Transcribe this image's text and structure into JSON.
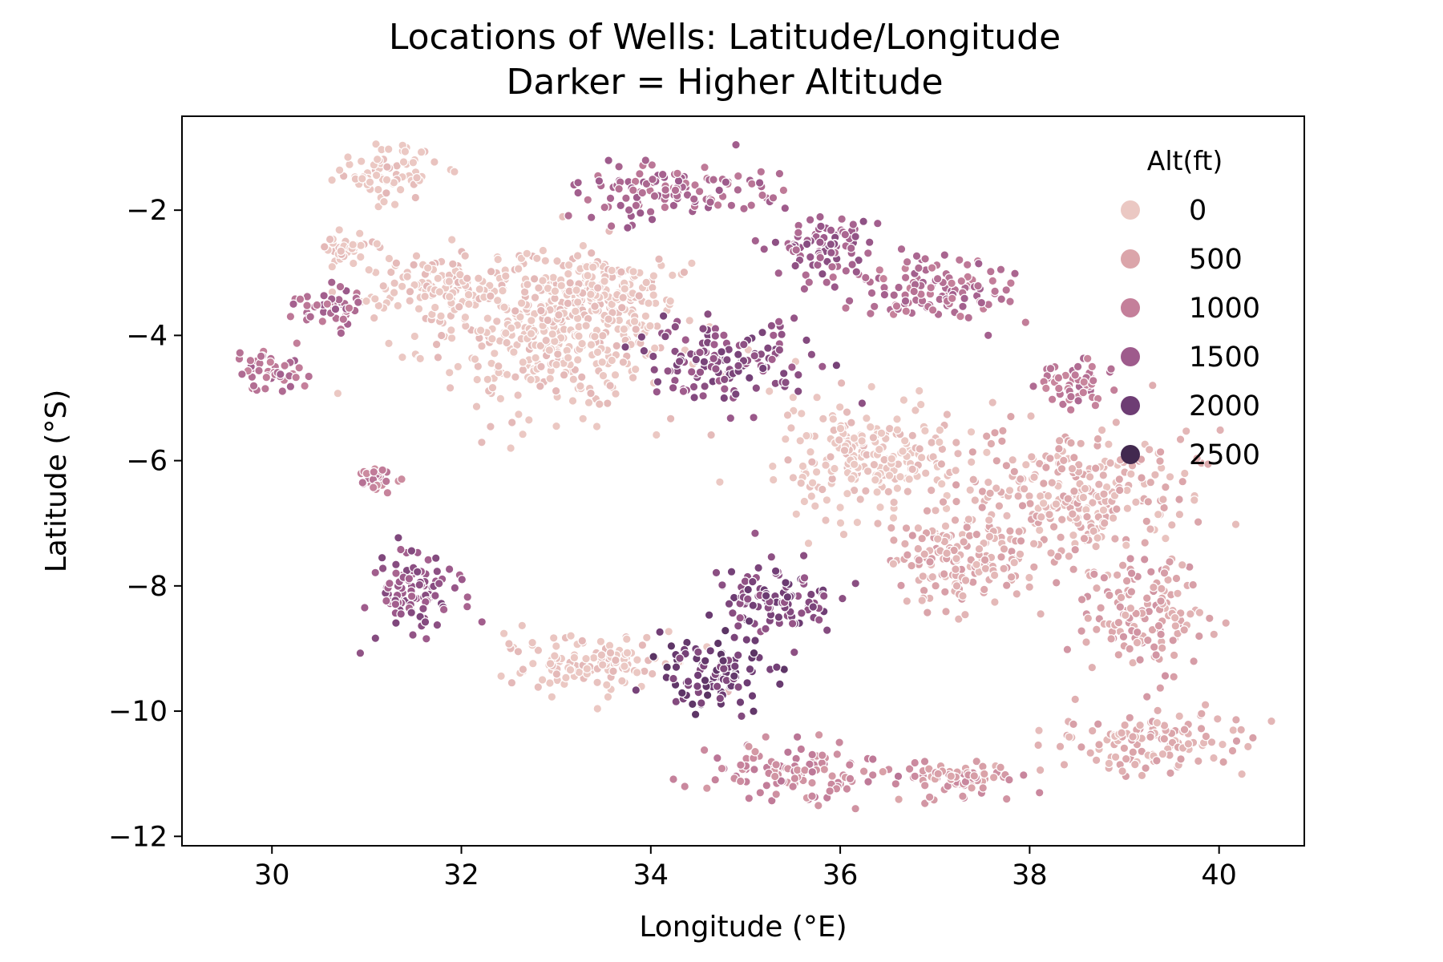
{
  "chart_data": {
    "type": "scatter",
    "title": "Locations of Wells:  Latitude/Longitude",
    "subtitle": "Darker = Higher Altitude",
    "xlabel": "Longitude (°E)",
    "ylabel": "Latitude (°S)",
    "xlim": [
      29.05,
      40.9
    ],
    "ylim": [
      -12.15,
      -0.5
    ],
    "xticks": [
      30,
      32,
      34,
      36,
      38,
      40
    ],
    "xtick_labels": [
      "30",
      "32",
      "34",
      "36",
      "38",
      "40"
    ],
    "yticks": [
      -2,
      -4,
      -6,
      -8,
      -10,
      -12
    ],
    "ytick_labels": [
      "−2",
      "−4",
      "−6",
      "−8",
      "−10",
      "−12"
    ],
    "grid": false,
    "legend": {
      "title": "Alt(ft)",
      "position": "top-right",
      "items": [
        {
          "label": "0",
          "color": "#ebc8c3"
        },
        {
          "label": "500",
          "color": "#dba5aa"
        },
        {
          "label": "1000",
          "color": "#c47f9a"
        },
        {
          "label": "1500",
          "color": "#9e5b8c"
        },
        {
          "label": "2000",
          "color": "#6e3d74"
        },
        {
          "label": "2500",
          "color": "#42294f"
        }
      ]
    },
    "clusters": [
      {
        "lon": 31.2,
        "lat": -1.4,
        "rx": 0.55,
        "ry": 0.45,
        "alt": 0
      },
      {
        "lon": 32.9,
        "lat": -4.0,
        "rx": 1.3,
        "ry": 1.2,
        "alt": 0
      },
      {
        "lon": 31.8,
        "lat": -3.2,
        "rx": 1.0,
        "ry": 0.55,
        "alt": 0
      },
      {
        "lon": 33.5,
        "lat": -3.3,
        "rx": 0.8,
        "ry": 0.6,
        "alt": 0
      },
      {
        "lon": 30.8,
        "lat": -2.6,
        "rx": 0.3,
        "ry": 0.25,
        "alt": 0
      },
      {
        "lon": 36.3,
        "lat": -6.0,
        "rx": 1.0,
        "ry": 0.9,
        "alt": 0
      },
      {
        "lon": 38.5,
        "lat": -6.5,
        "rx": 1.2,
        "ry": 1.0,
        "alt": 300
      },
      {
        "lon": 39.3,
        "lat": -10.5,
        "rx": 1.0,
        "ry": 0.5,
        "alt": 400
      },
      {
        "lon": 33.4,
        "lat": -9.2,
        "rx": 1.0,
        "ry": 0.45,
        "alt": 0
      },
      {
        "lon": 37.3,
        "lat": -7.6,
        "rx": 0.9,
        "ry": 0.7,
        "alt": 400
      },
      {
        "lon": 39.2,
        "lat": -8.5,
        "rx": 0.6,
        "ry": 0.9,
        "alt": 500
      },
      {
        "lon": 34.2,
        "lat": -1.7,
        "rx": 1.0,
        "ry": 0.45,
        "alt": 1300
      },
      {
        "lon": 34.8,
        "lat": -4.4,
        "rx": 0.9,
        "ry": 0.6,
        "alt": 1700
      },
      {
        "lon": 35.3,
        "lat": -8.2,
        "rx": 0.7,
        "ry": 0.55,
        "alt": 1800
      },
      {
        "lon": 34.7,
        "lat": -9.4,
        "rx": 0.6,
        "ry": 0.6,
        "alt": 2000
      },
      {
        "lon": 31.5,
        "lat": -8.1,
        "rx": 0.5,
        "ry": 0.7,
        "alt": 1600
      },
      {
        "lon": 30.0,
        "lat": -4.6,
        "rx": 0.4,
        "ry": 0.35,
        "alt": 1200
      },
      {
        "lon": 30.6,
        "lat": -3.5,
        "rx": 0.35,
        "ry": 0.35,
        "alt": 1300
      },
      {
        "lon": 36.9,
        "lat": -3.3,
        "rx": 0.9,
        "ry": 0.5,
        "alt": 1200
      },
      {
        "lon": 35.8,
        "lat": -2.6,
        "rx": 0.6,
        "ry": 0.5,
        "alt": 1500
      },
      {
        "lon": 35.5,
        "lat": -11.0,
        "rx": 0.9,
        "ry": 0.45,
        "alt": 900
      },
      {
        "lon": 37.3,
        "lat": -11.1,
        "rx": 0.7,
        "ry": 0.35,
        "alt": 700
      },
      {
        "lon": 31.1,
        "lat": -6.3,
        "rx": 0.25,
        "ry": 0.2,
        "alt": 1000
      },
      {
        "lon": 38.5,
        "lat": -4.8,
        "rx": 0.4,
        "ry": 0.35,
        "alt": 1100
      }
    ]
  }
}
